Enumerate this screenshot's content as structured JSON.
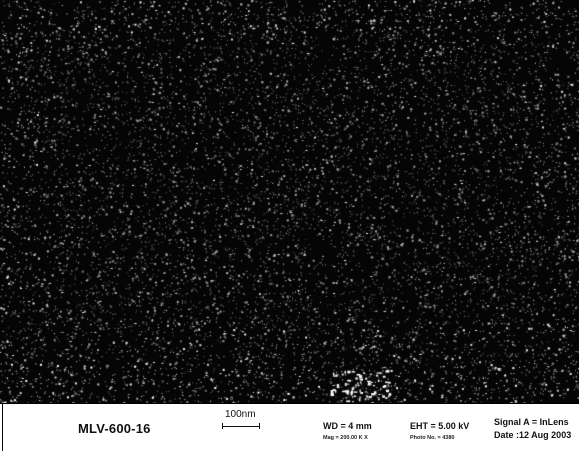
{
  "image": {
    "description_kind": "sem-micrograph"
  },
  "info_bar": {
    "sample_id": "MLV-600-16",
    "scale_label": "100nm",
    "wd": "WD =   4 mm",
    "mag": "Mag = 200.00 K X",
    "eht": "EHT =  5.00 kV",
    "photo_no": "Photo No. = 4380",
    "signal": "Signal A = InLens",
    "date": "Date :12 Aug 2003"
  }
}
